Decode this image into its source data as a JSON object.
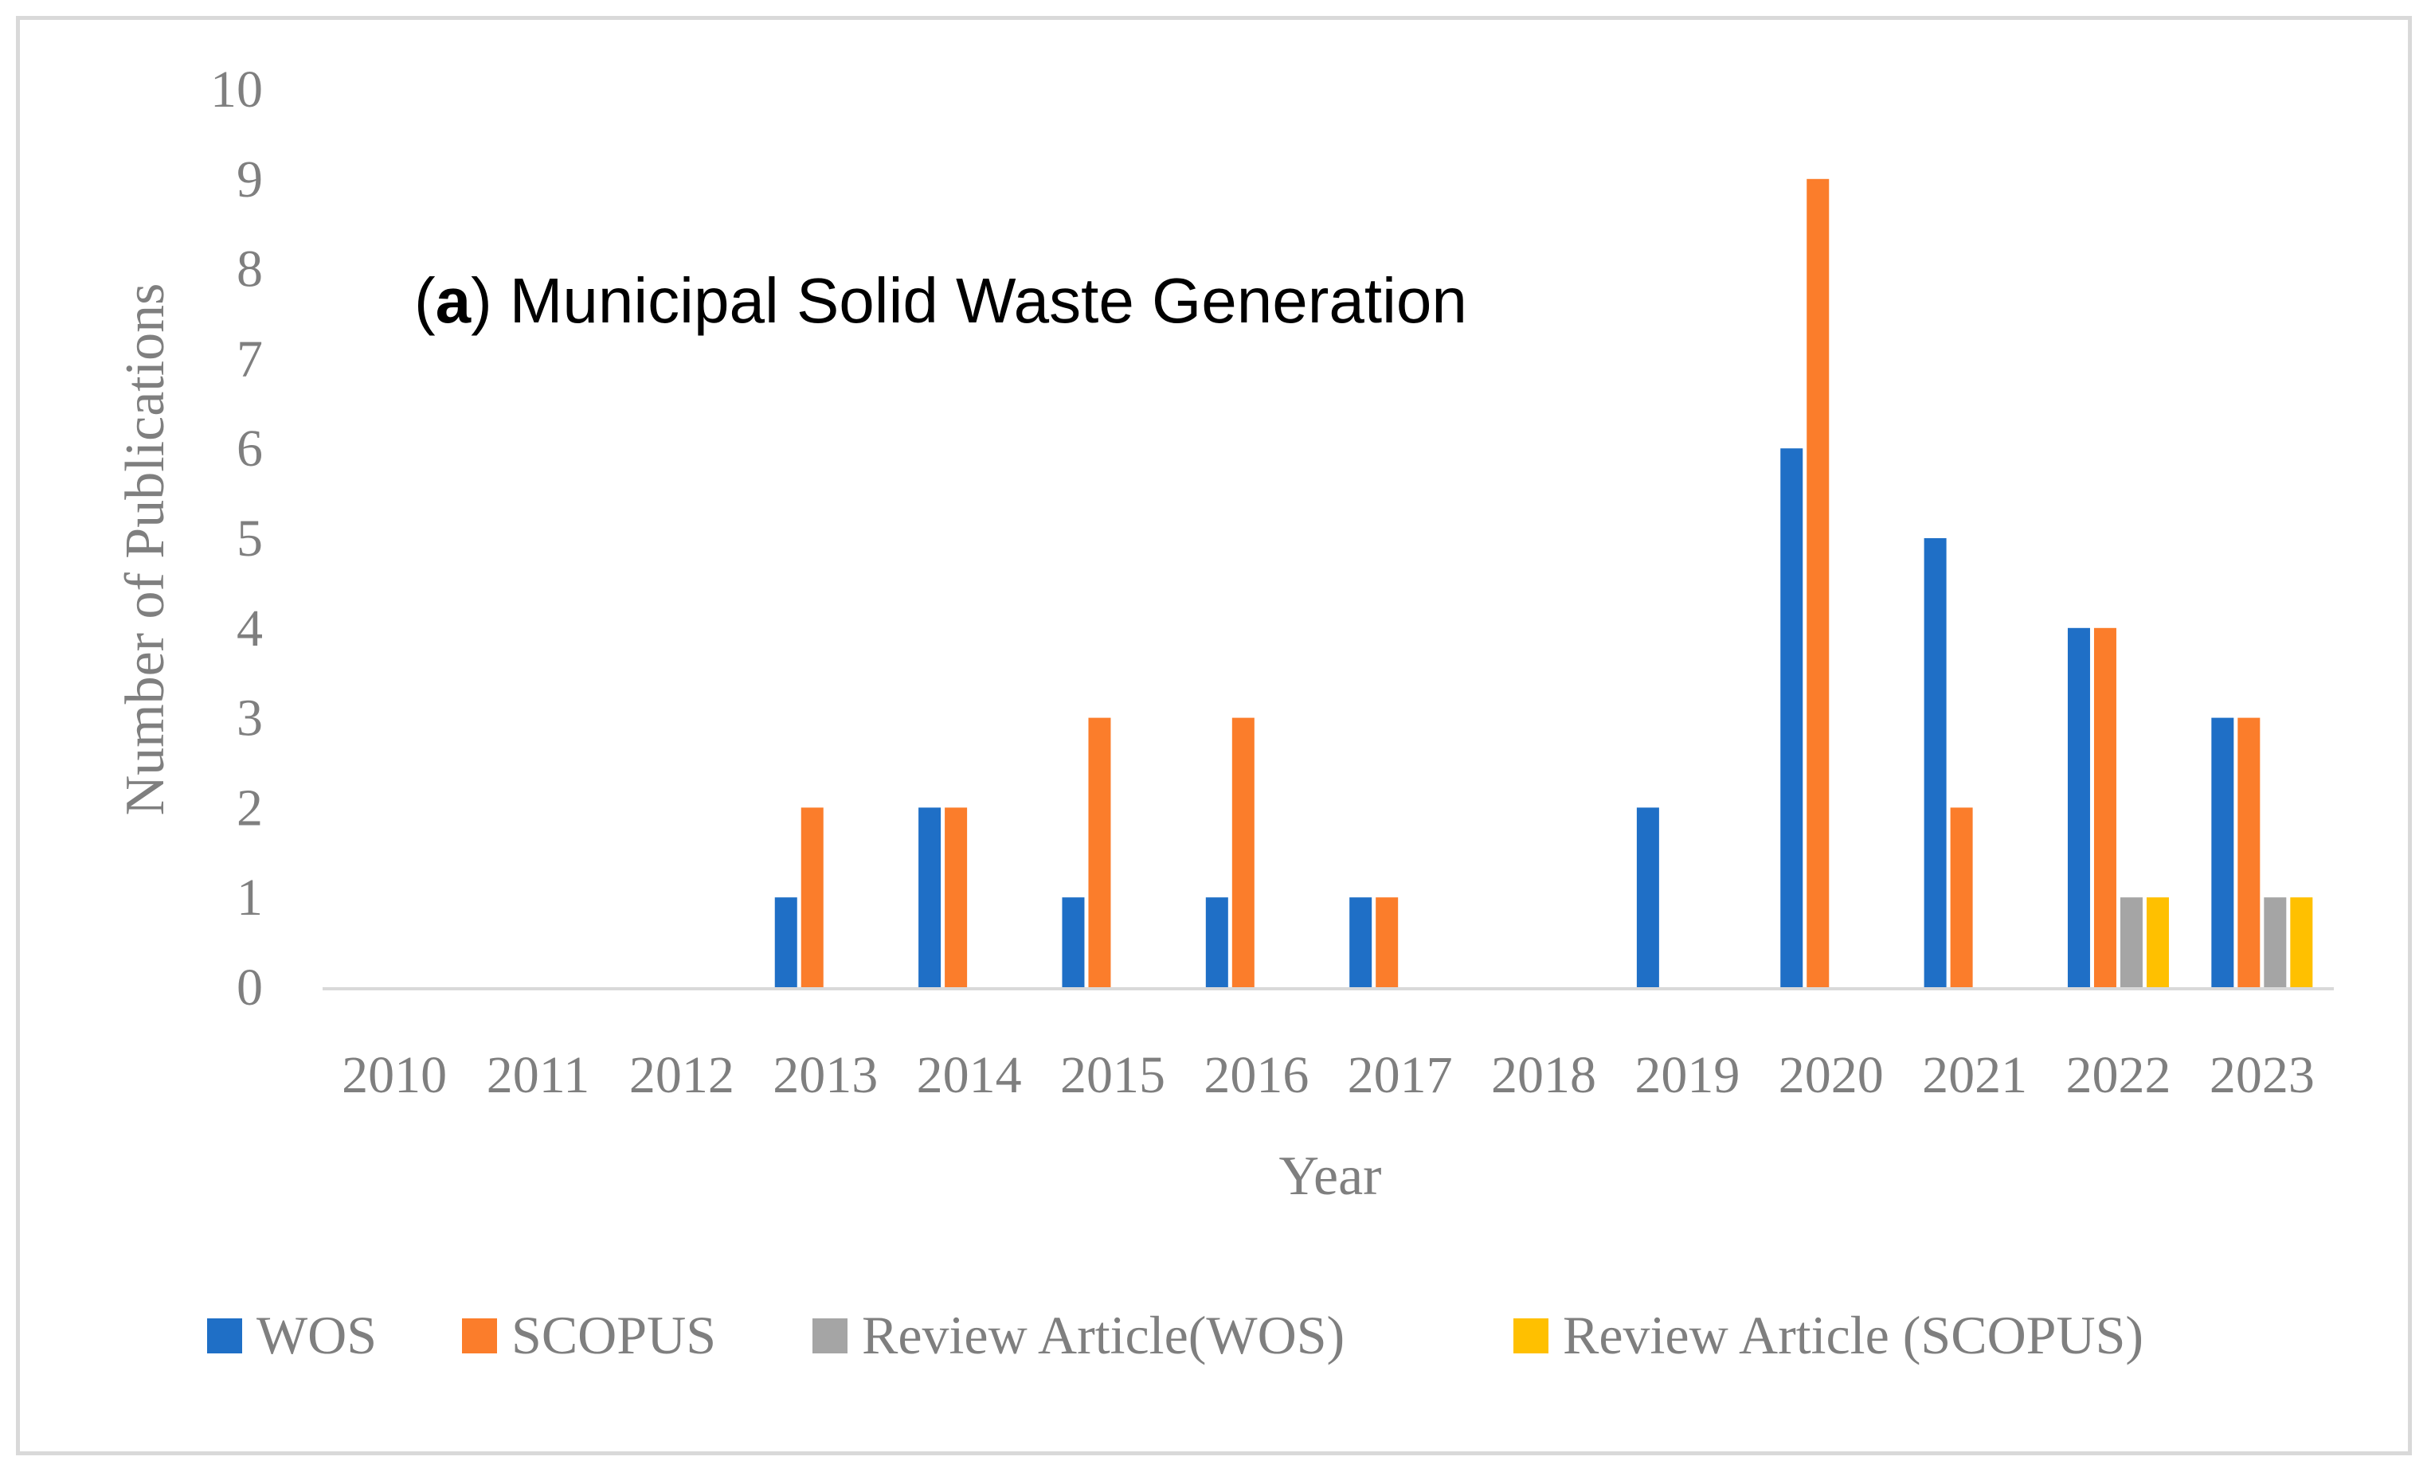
{
  "chart_data": {
    "type": "bar",
    "annotation": {
      "prefix_open": "(",
      "letter": "a",
      "prefix_close": ")",
      "text": "Municipal Solid Waste Generation"
    },
    "xlabel": "Year",
    "ylabel": "Number of Publications",
    "ylim": [
      0,
      10
    ],
    "yticks": [
      0,
      1,
      2,
      3,
      4,
      5,
      6,
      7,
      8,
      9,
      10
    ],
    "grid": false,
    "legend_position": "bottom",
    "categories": [
      "2010",
      "2011",
      "2012",
      "2013",
      "2014",
      "2015",
      "2016",
      "2017",
      "2018",
      "2019",
      "2020",
      "2021",
      "2022",
      "2023"
    ],
    "series": [
      {
        "name": "WOS",
        "color": "#1f6fc6",
        "values": [
          0,
          0,
          0,
          1,
          2,
          1,
          1,
          1,
          0,
          2,
          6,
          5,
          4,
          3
        ]
      },
      {
        "name": "SCOPUS",
        "color": "#fb7d2b",
        "values": [
          0,
          0,
          0,
          2,
          2,
          3,
          3,
          1,
          0,
          0,
          9,
          2,
          4,
          3
        ]
      },
      {
        "name": "Review Article(WOS)",
        "color": "#a5a5a5",
        "values": [
          0,
          0,
          0,
          0,
          0,
          0,
          0,
          0,
          0,
          0,
          0,
          0,
          1,
          1
        ]
      },
      {
        "name": "Review Article (SCOPUS)",
        "color": "#ffc000",
        "values": [
          0,
          0,
          0,
          0,
          0,
          0,
          0,
          0,
          0,
          0,
          0,
          0,
          1,
          1
        ]
      }
    ]
  }
}
